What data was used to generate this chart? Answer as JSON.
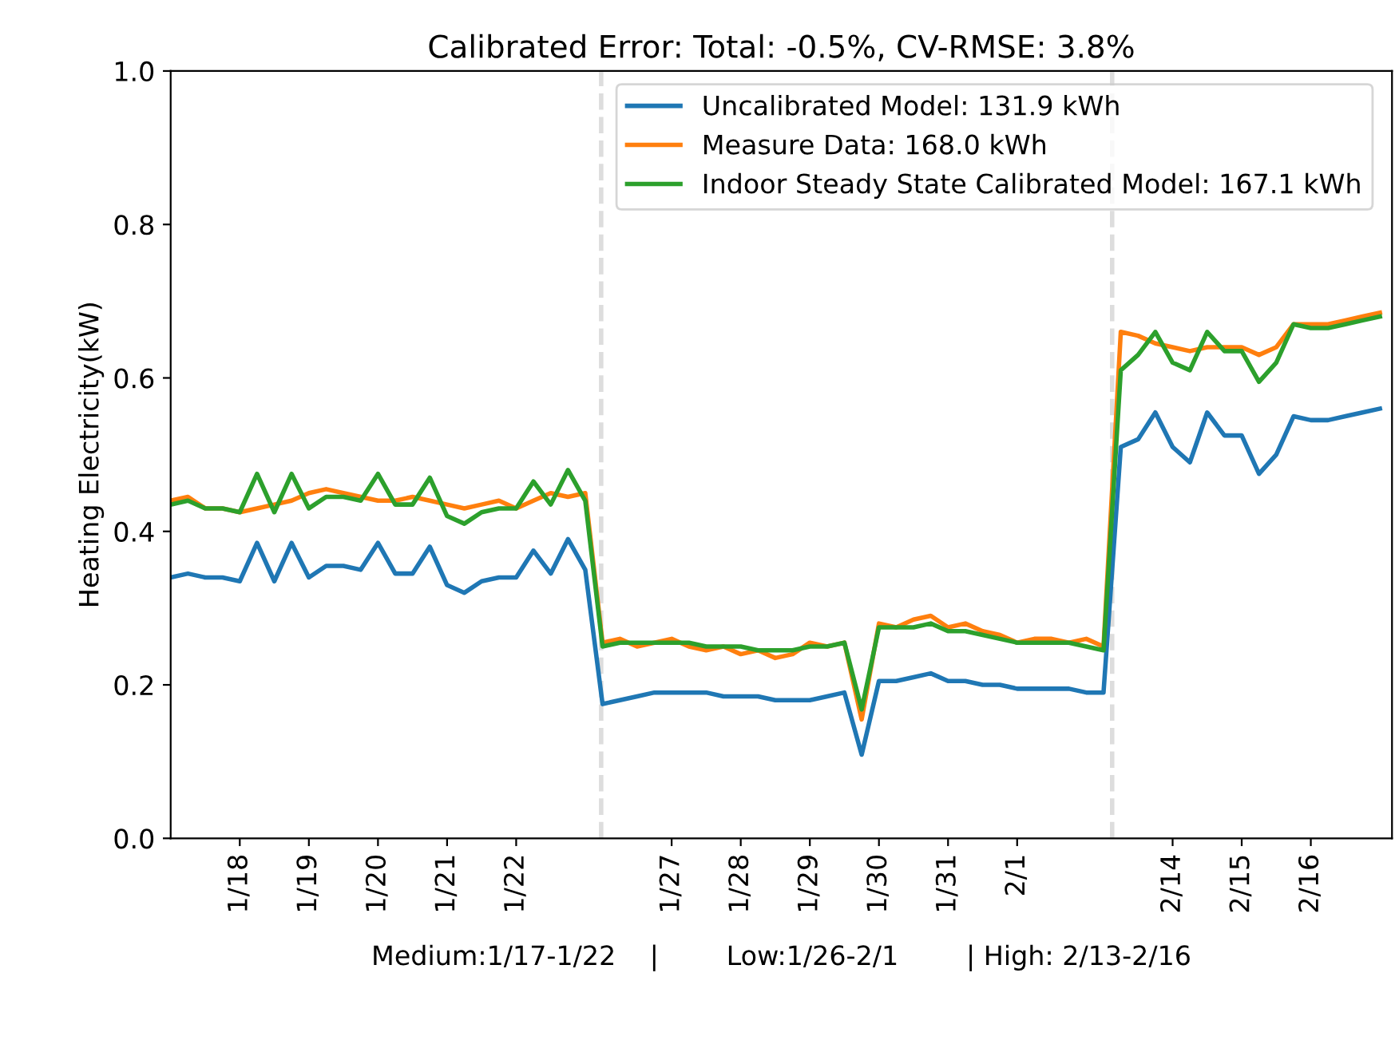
{
  "chart_data": {
    "type": "line",
    "title": "Calibrated Error: Total: -0.5%, CV-RMSE: 3.8%",
    "xlabel": "Medium:1/17-1/22    |        Low:1/26-2/1        | High: 2/13-2/16",
    "ylabel": "Heating Electricity(kW)",
    "categories": [
      null,
      null,
      null,
      null,
      "1/18",
      null,
      null,
      null,
      "1/19",
      null,
      null,
      null,
      "1/20",
      null,
      null,
      null,
      "1/21",
      null,
      null,
      null,
      "1/22",
      null,
      null,
      null,
      null,
      null,
      null,
      null,
      null,
      "1/27",
      null,
      null,
      null,
      "1/28",
      null,
      null,
      null,
      "1/29",
      null,
      null,
      null,
      "1/30",
      null,
      null,
      null,
      "1/31",
      null,
      null,
      null,
      "2/1",
      null,
      null,
      null,
      null,
      null,
      null,
      null,
      null,
      "2/14",
      null,
      null,
      null,
      "2/15",
      null,
      null,
      null,
      "2/16",
      null,
      null,
      null,
      null
    ],
    "series": [
      {
        "name": "Uncalibrated Model: 131.9 kWh",
        "color": "#1f77b4",
        "values": [
          0.34,
          0.345,
          0.34,
          0.34,
          0.335,
          0.385,
          0.335,
          0.385,
          0.34,
          0.355,
          0.355,
          0.35,
          0.385,
          0.345,
          0.345,
          0.38,
          0.33,
          0.32,
          0.335,
          0.34,
          0.34,
          0.375,
          0.345,
          0.39,
          0.35,
          0.175,
          0.18,
          0.185,
          0.19,
          0.19,
          0.19,
          0.19,
          0.185,
          0.185,
          0.185,
          0.18,
          0.18,
          0.18,
          0.185,
          0.19,
          0.109,
          0.205,
          0.205,
          0.21,
          0.215,
          0.205,
          0.205,
          0.2,
          0.2,
          0.195,
          0.195,
          0.195,
          0.195,
          0.19,
          0.19,
          0.51,
          0.52,
          0.555,
          0.51,
          0.49,
          0.555,
          0.525,
          0.525,
          0.475,
          0.5,
          0.55,
          0.545,
          0.545,
          0.55,
          0.555,
          0.56
        ]
      },
      {
        "name": "Measure Data: 168.0 kWh",
        "color": "#ff7f0e",
        "values": [
          0.44,
          0.445,
          0.43,
          0.43,
          0.425,
          0.43,
          0.435,
          0.44,
          0.45,
          0.455,
          0.45,
          0.445,
          0.44,
          0.44,
          0.445,
          0.44,
          0.435,
          0.43,
          0.435,
          0.44,
          0.43,
          0.44,
          0.45,
          0.445,
          0.45,
          0.255,
          0.26,
          0.25,
          0.255,
          0.26,
          0.25,
          0.245,
          0.25,
          0.24,
          0.245,
          0.235,
          0.24,
          0.255,
          0.25,
          0.255,
          0.155,
          0.28,
          0.275,
          0.285,
          0.29,
          0.275,
          0.28,
          0.27,
          0.265,
          0.255,
          0.26,
          0.26,
          0.255,
          0.26,
          0.25,
          0.66,
          0.655,
          0.645,
          0.64,
          0.635,
          0.64,
          0.64,
          0.64,
          0.63,
          0.64,
          0.67,
          0.67,
          0.67,
          0.675,
          0.68,
          0.685
        ]
      },
      {
        "name": "Indoor Steady State Calibrated Model: 167.1 kWh",
        "color": "#2ca02c",
        "values": [
          0.435,
          0.44,
          0.43,
          0.43,
          0.425,
          0.475,
          0.425,
          0.475,
          0.43,
          0.445,
          0.445,
          0.44,
          0.475,
          0.435,
          0.435,
          0.47,
          0.42,
          0.41,
          0.425,
          0.43,
          0.43,
          0.465,
          0.435,
          0.48,
          0.44,
          0.25,
          0.255,
          0.255,
          0.255,
          0.255,
          0.255,
          0.25,
          0.25,
          0.25,
          0.245,
          0.245,
          0.245,
          0.25,
          0.25,
          0.255,
          0.168,
          0.275,
          0.275,
          0.275,
          0.28,
          0.27,
          0.27,
          0.265,
          0.26,
          0.255,
          0.255,
          0.255,
          0.255,
          0.25,
          0.245,
          0.61,
          0.63,
          0.66,
          0.62,
          0.61,
          0.66,
          0.635,
          0.635,
          0.595,
          0.62,
          0.67,
          0.665,
          0.665,
          0.67,
          0.675,
          0.68
        ]
      }
    ],
    "ylim": [
      0,
      1
    ],
    "yticks": [
      {
        "value": 0,
        "label": "0.0"
      },
      {
        "value": 0.2,
        "label": "0.2"
      },
      {
        "value": 0.4,
        "label": "0.4"
      },
      {
        "value": 0.6,
        "label": "0.6"
      },
      {
        "value": 0.8,
        "label": "0.8"
      },
      {
        "value": 1,
        "label": "1.0"
      }
    ],
    "legend": "top right",
    "marker": "none",
    "line_style": "solid"
  }
}
